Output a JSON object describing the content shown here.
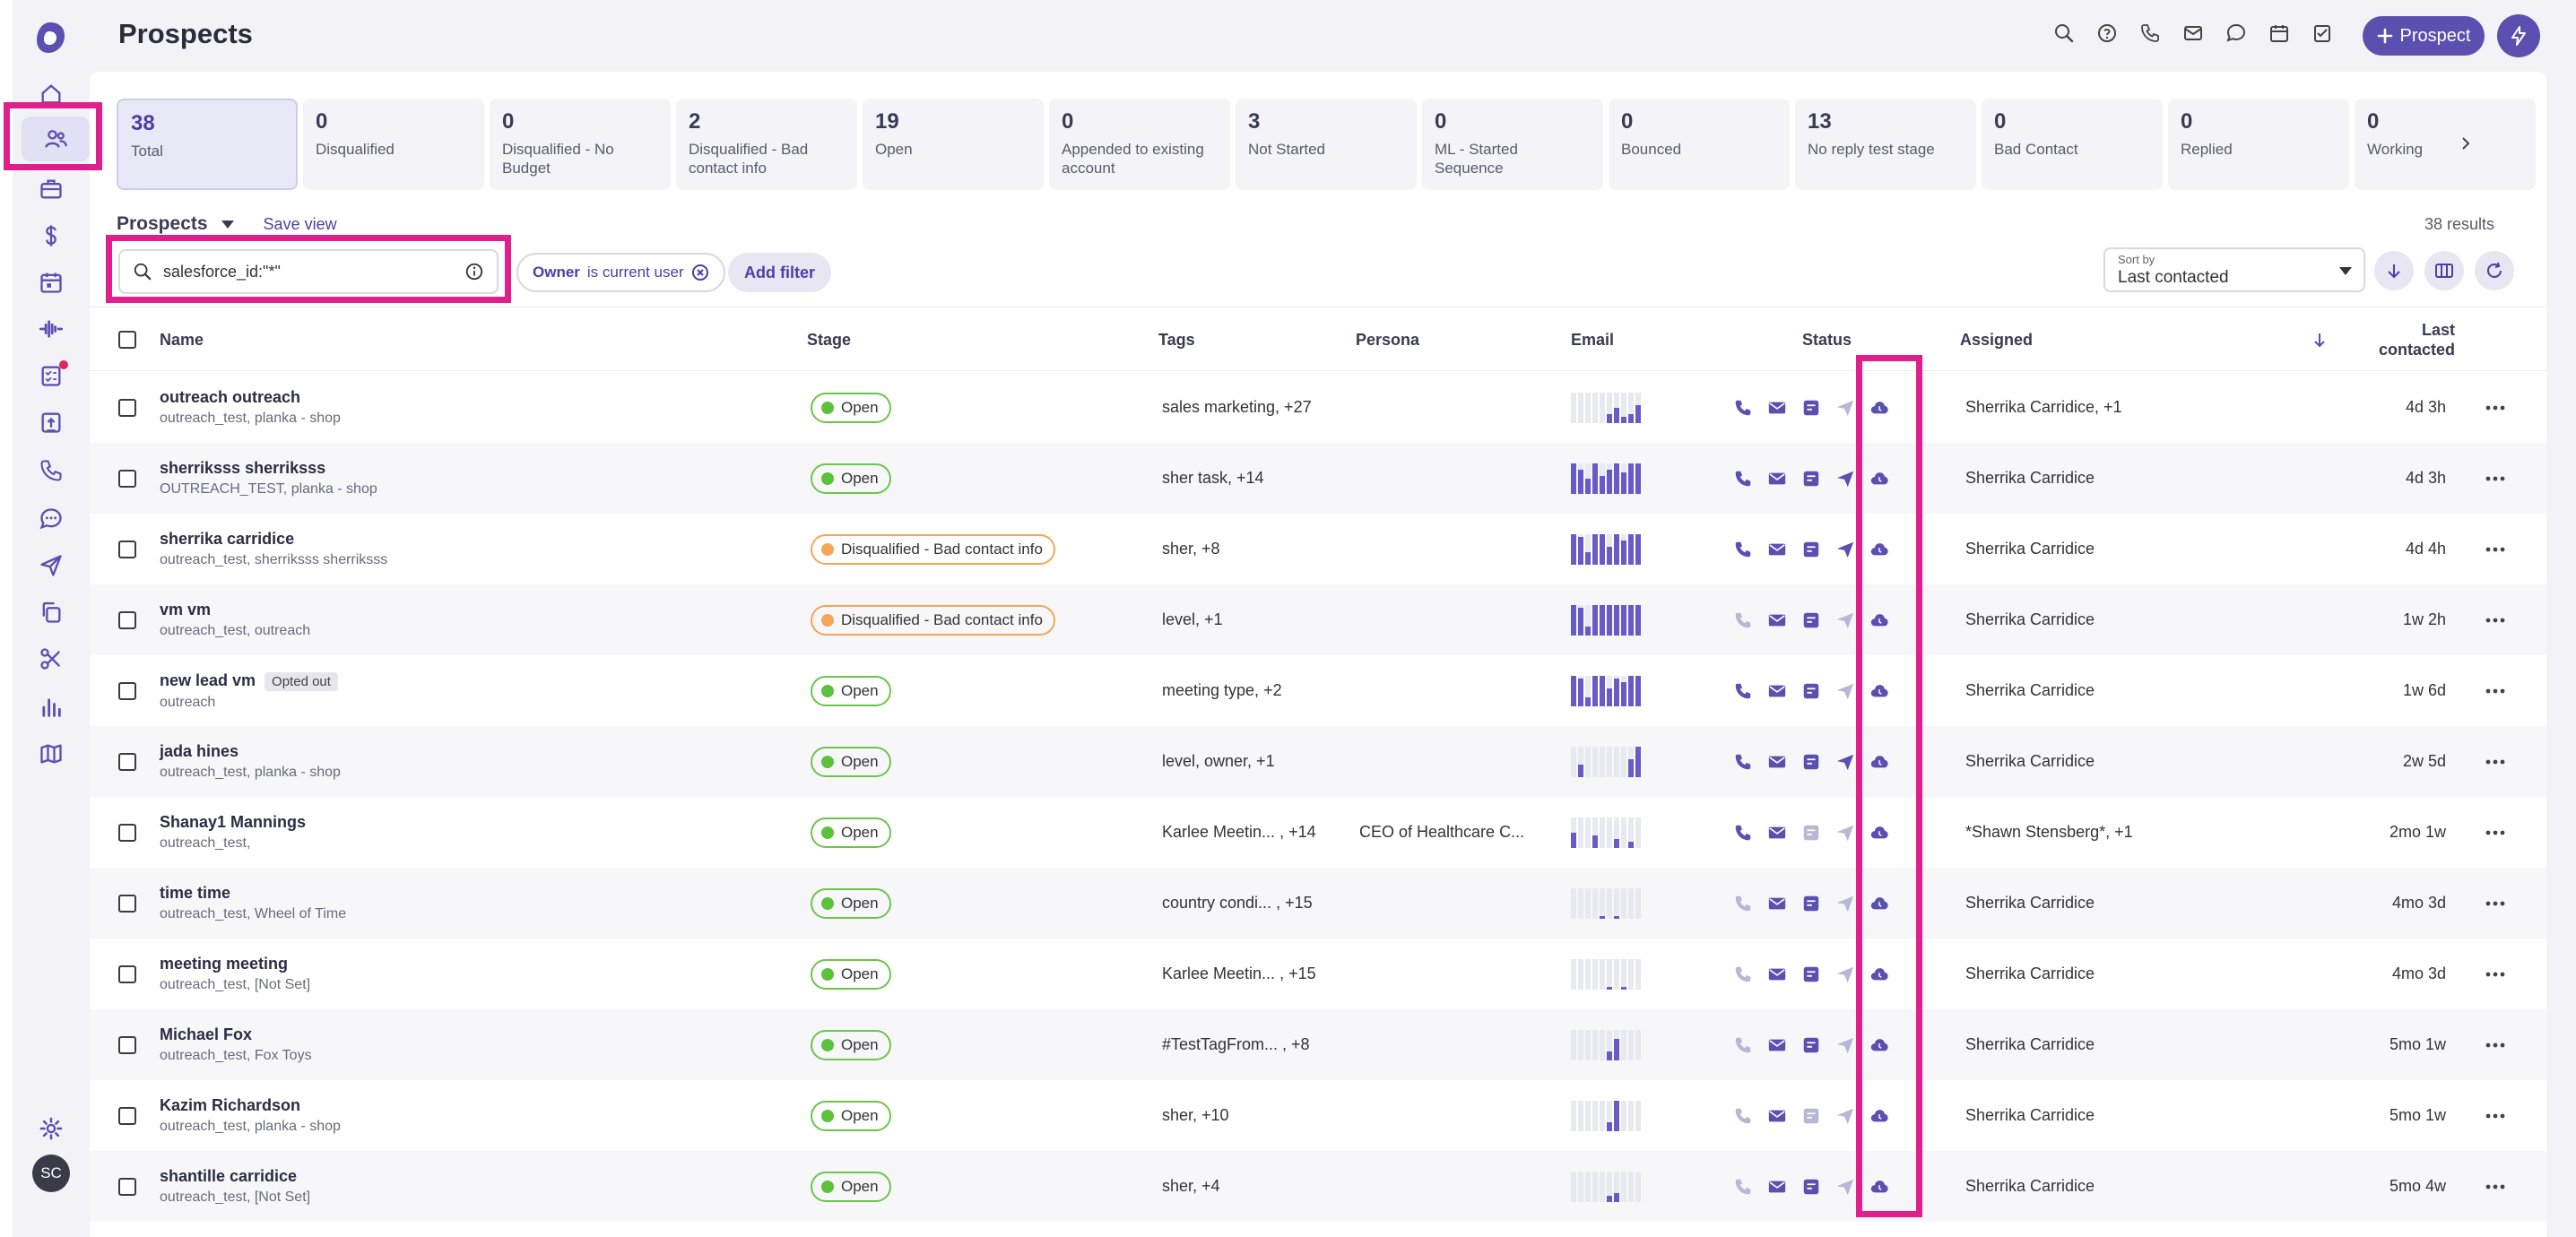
{
  "header": {
    "title": "Prospects",
    "add_prospect_label": "Prospect"
  },
  "rail": {
    "avatar_initials": "SC"
  },
  "stage_tabs": [
    {
      "count": "38",
      "label": "Total"
    },
    {
      "count": "0",
      "label": "Disqualified"
    },
    {
      "count": "0",
      "label": "Disqualified - No Budget"
    },
    {
      "count": "2",
      "label": "Disqualified - Bad contact info"
    },
    {
      "count": "19",
      "label": "Open"
    },
    {
      "count": "0",
      "label": "Appended to existing account"
    },
    {
      "count": "3",
      "label": "Not Started"
    },
    {
      "count": "0",
      "label": "ML - Started Sequence"
    },
    {
      "count": "0",
      "label": "Bounced"
    },
    {
      "count": "13",
      "label": "No reply test stage"
    },
    {
      "count": "0",
      "label": "Bad Contact"
    },
    {
      "count": "0",
      "label": "Replied"
    },
    {
      "count": "0",
      "label": "Working"
    }
  ],
  "view": {
    "name": "Prospects",
    "save_view": "Save view",
    "results": "38 results"
  },
  "search": {
    "value": "salesforce_id:\"*\""
  },
  "filter_chip": {
    "key": "Owner",
    "value": "is current user"
  },
  "add_filter": "Add filter",
  "sort": {
    "caption": "Sort by",
    "value": "Last contacted"
  },
  "table": {
    "headers": {
      "name": "Name",
      "stage": "Stage",
      "tags": "Tags",
      "persona": "Persona",
      "email": "Email",
      "status": "Status",
      "assigned": "Assigned",
      "last_contacted": "Last contacted"
    },
    "rows": [
      {
        "name": "outreach outreach",
        "sub": "outreach_test, planka - shop",
        "opted_out": "",
        "stage": "Open",
        "stage_type": "open",
        "tags": "sales marketing,  +27",
        "persona": "",
        "assigned": "Sherrika Carridice,  +1",
        "last": "4d 3h",
        "bars": [
          0,
          0,
          0,
          0,
          0,
          0.3,
          0.5,
          0.2,
          0.3,
          0.6
        ],
        "status": [
          1,
          1,
          1,
          0,
          1
        ]
      },
      {
        "name": "sherriksss sherriksss",
        "sub": "OUTREACH_TEST, planka - shop",
        "opted_out": "",
        "stage": "Open",
        "stage_type": "open",
        "tags": "sher task,  +14",
        "persona": "",
        "assigned": "Sherrika Carridice",
        "last": "4d 3h",
        "bars": [
          1,
          0.8,
          0.5,
          1,
          0.6,
          0.8,
          1,
          0.7,
          1,
          1
        ],
        "status": [
          1,
          1,
          1,
          1,
          1
        ]
      },
      {
        "name": "sherrika carridice",
        "sub": "outreach_test, sherriksss sherriksss",
        "opted_out": "",
        "stage": "Disqualified - Bad contact info",
        "stage_type": "dq",
        "tags": "sher,  +8",
        "persona": "",
        "assigned": "Sherrika Carridice",
        "last": "4d 4h",
        "bars": [
          1,
          0.9,
          0.4,
          1,
          1,
          0.6,
          1,
          0.8,
          1,
          1
        ],
        "status": [
          1,
          1,
          1,
          1,
          1
        ]
      },
      {
        "name": "vm vm",
        "sub": "outreach_test, outreach",
        "opted_out": "",
        "stage": "Disqualified - Bad contact info",
        "stage_type": "dq",
        "tags": "level,  +1",
        "persona": "",
        "assigned": "Sherrika Carridice",
        "last": "1w 2h",
        "bars": [
          1,
          0.9,
          0.3,
          1,
          1,
          1,
          1,
          1,
          1,
          1
        ],
        "status": [
          0,
          1,
          1,
          0,
          1
        ]
      },
      {
        "name": "new lead vm",
        "sub": "outreach",
        "opted_out": "Opted out",
        "stage": "Open",
        "stage_type": "open",
        "tags": "meeting type,  +2",
        "persona": "",
        "assigned": "Sherrika Carridice",
        "last": "1w 6d",
        "bars": [
          1,
          0.9,
          0.3,
          1,
          1,
          0.6,
          0.9,
          0.8,
          1,
          1
        ],
        "status": [
          1,
          1,
          1,
          0,
          1
        ]
      },
      {
        "name": "jada hines",
        "sub": "outreach_test, planka - shop",
        "opted_out": "",
        "stage": "Open",
        "stage_type": "open",
        "tags": "level, owner,  +1",
        "persona": "",
        "assigned": "Sherrika Carridice",
        "last": "2w 5d",
        "bars": [
          0,
          0.4,
          0,
          0,
          0,
          0,
          0,
          0,
          0.6,
          1
        ],
        "status": [
          1,
          1,
          1,
          1,
          1
        ]
      },
      {
        "name": "Shanay1 Mannings",
        "sub": "outreach_test,",
        "opted_out": "",
        "stage": "Open",
        "stage_type": "open",
        "tags": "Karlee Meetin... ,  +14",
        "persona": "CEO of Healthcare C...",
        "assigned": "*Shawn Stensberg*,  +1",
        "last": "2mo 1w",
        "bars": [
          0.5,
          0,
          0,
          0.4,
          0,
          0,
          0.3,
          0,
          0.2,
          0
        ],
        "status": [
          1,
          1,
          0,
          0,
          1
        ]
      },
      {
        "name": "time time",
        "sub": "outreach_test, Wheel of Time",
        "opted_out": "",
        "stage": "Open",
        "stage_type": "open",
        "tags": "country condi... ,  +15",
        "persona": "",
        "assigned": "Sherrika Carridice",
        "last": "4mo 3d",
        "bars": [
          0,
          0,
          0,
          0,
          0.1,
          0,
          0.1,
          0,
          0,
          0
        ],
        "status": [
          0,
          1,
          1,
          0,
          1
        ]
      },
      {
        "name": "meeting meeting",
        "sub": "outreach_test, [Not Set]",
        "opted_out": "",
        "stage": "Open",
        "stage_type": "open",
        "tags": "Karlee Meetin... ,  +15",
        "persona": "",
        "assigned": "Sherrika Carridice",
        "last": "4mo 3d",
        "bars": [
          0,
          0,
          0,
          0,
          0,
          0.1,
          0,
          0.1,
          0,
          0
        ],
        "status": [
          0,
          1,
          1,
          0,
          1
        ]
      },
      {
        "name": "Michael Fox",
        "sub": "outreach_test, Fox Toys",
        "opted_out": "",
        "stage": "Open",
        "stage_type": "open",
        "tags": "#TestTagFrom... ,  +8",
        "persona": "",
        "assigned": "Sherrika Carridice",
        "last": "5mo 1w",
        "bars": [
          0,
          0,
          0,
          0,
          0,
          0.3,
          0.7,
          0,
          0,
          0
        ],
        "status": [
          0,
          1,
          1,
          0,
          1
        ]
      },
      {
        "name": "Kazim Richardson",
        "sub": "outreach_test, planka - shop",
        "opted_out": "",
        "stage": "Open",
        "stage_type": "open",
        "tags": "sher,  +10",
        "persona": "",
        "assigned": "Sherrika Carridice",
        "last": "5mo 1w",
        "bars": [
          0,
          0,
          0,
          0,
          0,
          0.3,
          1,
          0,
          0,
          0
        ],
        "status": [
          0,
          1,
          0,
          0,
          1
        ]
      },
      {
        "name": "shantille carridice",
        "sub": "outreach_test, [Not Set]",
        "opted_out": "",
        "stage": "Open",
        "stage_type": "open",
        "tags": "sher,  +4",
        "persona": "",
        "assigned": "Sherrika Carridice",
        "last": "5mo 4w",
        "bars": [
          0,
          0,
          0,
          0,
          0,
          0.2,
          0.3,
          0,
          0,
          0
        ],
        "status": [
          0,
          1,
          1,
          0,
          1
        ]
      }
    ]
  }
}
